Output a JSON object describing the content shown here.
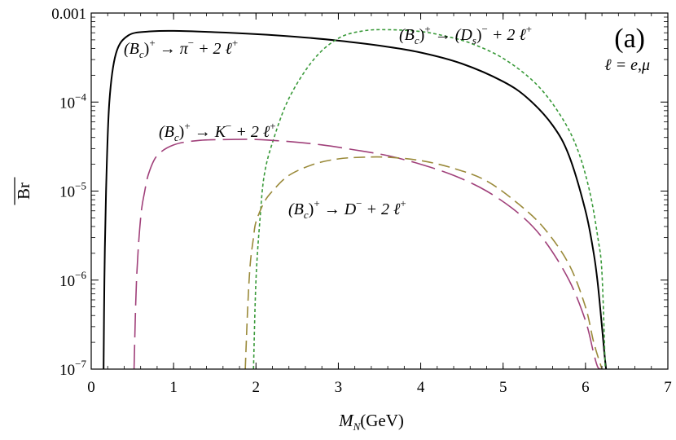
{
  "chart_data": {
    "type": "line",
    "xlabel": "M_N(GeV)",
    "ylabel": "Br",
    "xlim": [
      0,
      7
    ],
    "ylim": [
      1e-07,
      0.001
    ],
    "yscale": "log",
    "xticks": [
      0,
      1,
      2,
      3,
      4,
      5,
      6,
      7
    ],
    "xtick_labels": [
      "0",
      "1",
      "2",
      "3",
      "4",
      "5",
      "6",
      "7"
    ],
    "ytick_labels": [
      {
        "value": 0.001,
        "mantissa": "0.001",
        "exp": ""
      },
      {
        "value": 0.0001,
        "mantissa": "10",
        "exp": "−4"
      },
      {
        "value": 1e-05,
        "mantissa": "10",
        "exp": "−5"
      },
      {
        "value": 1e-06,
        "mantissa": "10",
        "exp": "−6"
      },
      {
        "value": 1e-07,
        "mantissa": "10",
        "exp": "−7"
      }
    ],
    "panel_label": "(a)",
    "lepton_note": "ℓ = e,μ",
    "series": [
      {
        "name": "(Bc)+ → π− + 2 ℓ+",
        "color": "#000000",
        "dash": "solid",
        "x": [
          0.15,
          0.16,
          0.18,
          0.22,
          0.3,
          0.45,
          0.7,
          1.0,
          1.5,
          2.0,
          2.5,
          3.0,
          3.5,
          4.0,
          4.5,
          5.0,
          5.3,
          5.6,
          5.8,
          6.0,
          6.1,
          6.15,
          6.2,
          6.23,
          6.25
        ],
        "y": [
          1e-07,
          1e-06,
          1e-05,
          0.0001,
          0.00035,
          0.00056,
          0.00062,
          0.00063,
          0.00061,
          0.00058,
          0.00054,
          0.00049,
          0.00043,
          0.00036,
          0.00027,
          0.00017,
          0.00011,
          5.5e-05,
          2.5e-05,
          6e-06,
          2e-06,
          9e-07,
          3e-07,
          1.5e-07,
          1e-07
        ]
      },
      {
        "name": "(Bc)+ → (Ds)− + 2 ℓ+",
        "color": "#3a9a3a",
        "dash": "short",
        "x": [
          1.97,
          2.0,
          2.05,
          2.1,
          2.2,
          2.4,
          2.7,
          3.0,
          3.3,
          3.6,
          4.0,
          4.3,
          4.6,
          5.0,
          5.4,
          5.7,
          5.9,
          6.05,
          6.15,
          6.2,
          6.24
        ],
        "y": [
          1e-07,
          1e-06,
          5e-06,
          1.5e-05,
          3.5e-05,
          0.00011,
          0.0003,
          0.00052,
          0.00063,
          0.00065,
          0.00062,
          0.00055,
          0.00046,
          0.00031,
          0.00016,
          7e-05,
          3e-05,
          1e-05,
          3e-06,
          1.2e-06,
          1e-07
        ]
      },
      {
        "name": "(Bc)+ → K− + 2 ℓ+",
        "color": "#a0407a",
        "dash": "long",
        "x": [
          0.52,
          0.55,
          0.6,
          0.65,
          0.7,
          0.8,
          1.0,
          1.3,
          1.7,
          2.0,
          2.4,
          2.8,
          3.2,
          3.6,
          4.0,
          4.4,
          4.8,
          5.2,
          5.5,
          5.8,
          6.0,
          6.1,
          6.15,
          6.2
        ],
        "y": [
          1e-07,
          1e-06,
          5e-06,
          1e-05,
          1.6e-05,
          2.5e-05,
          3.3e-05,
          3.7e-05,
          3.8e-05,
          3.8e-05,
          3.6e-05,
          3.3e-05,
          2.9e-05,
          2.5e-05,
          2e-05,
          1.5e-05,
          1e-05,
          5.5e-06,
          2.8e-06,
          1e-06,
          3.5e-07,
          1.5e-07,
          1.05e-07,
          1e-07
        ]
      },
      {
        "name": "(Bc)+ → D− + 2 ℓ+",
        "color": "#9a8a3a",
        "dash": "medium",
        "x": [
          1.87,
          1.9,
          1.93,
          1.97,
          2.0,
          2.1,
          2.2,
          2.4,
          2.7,
          3.0,
          3.3,
          3.6,
          4.0,
          4.4,
          4.8,
          5.2,
          5.5,
          5.8,
          6.0,
          6.1,
          6.2
        ],
        "y": [
          1e-07,
          5e-07,
          1.5e-06,
          3e-06,
          4.5e-06,
          7.5e-06,
          1e-05,
          1.5e-05,
          2e-05,
          2.3e-05,
          2.4e-05,
          2.4e-05,
          2.2e-05,
          1.8e-05,
          1.3e-05,
          7e-06,
          3.8e-06,
          1.5e-06,
          5e-07,
          2e-07,
          1e-07
        ]
      }
    ],
    "labels": [
      {
        "pre": "(B",
        "sub": "c",
        "mid": ")",
        "sup": "+",
        "rest": " → π",
        "sup2": "−",
        "tail": " + 2 ℓ",
        "sup3": "+"
      },
      {
        "pre": "(B",
        "sub": "c",
        "mid": ")",
        "sup": "+",
        "rest": " → (D",
        "sub2": "s",
        "rest2": ")",
        "sup2": "−",
        "tail": " + 2 ℓ",
        "sup3": "+"
      },
      {
        "pre": "(B",
        "sub": "c",
        "mid": ")",
        "sup": "+",
        "rest": " → K",
        "sup2": "−",
        "tail": " + 2 ℓ",
        "sup3": "+"
      },
      {
        "pre": "(B",
        "sub": "c",
        "mid": ")",
        "sup": "+",
        "rest": " → D",
        "sup2": "−",
        "tail": " + 2 ℓ",
        "sup3": "+"
      }
    ]
  }
}
